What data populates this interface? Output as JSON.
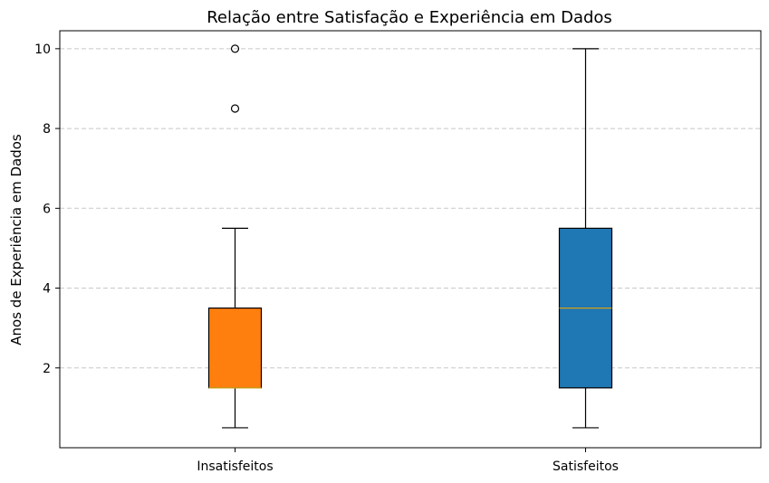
{
  "chart_data": {
    "type": "boxplot",
    "title": "Relação entre Satisfação e Experiência em Dados",
    "xlabel": "",
    "ylabel": "Anos de Experiência em Dados",
    "categories": [
      "Insatisfeitos",
      "Satisfeitos"
    ],
    "ylim": [
      0.0,
      10.45
    ],
    "yticks": [
      2,
      4,
      6,
      8,
      10
    ],
    "grid": "horizontal dashed",
    "boxes": [
      {
        "category": "Insatisfeitos",
        "whisker_low": 0.5,
        "q1": 1.5,
        "median": 1.5,
        "q3": 3.5,
        "whisker_high": 5.5,
        "outliers": [
          8.5,
          10
        ],
        "color": "#ff7f0e"
      },
      {
        "category": "Satisfeitos",
        "whisker_low": 0.5,
        "q1": 1.5,
        "median": 3.5,
        "q3": 5.5,
        "whisker_high": 10,
        "outliers": [],
        "color": "#1f77b4"
      }
    ],
    "median_color": "#d4a017"
  }
}
